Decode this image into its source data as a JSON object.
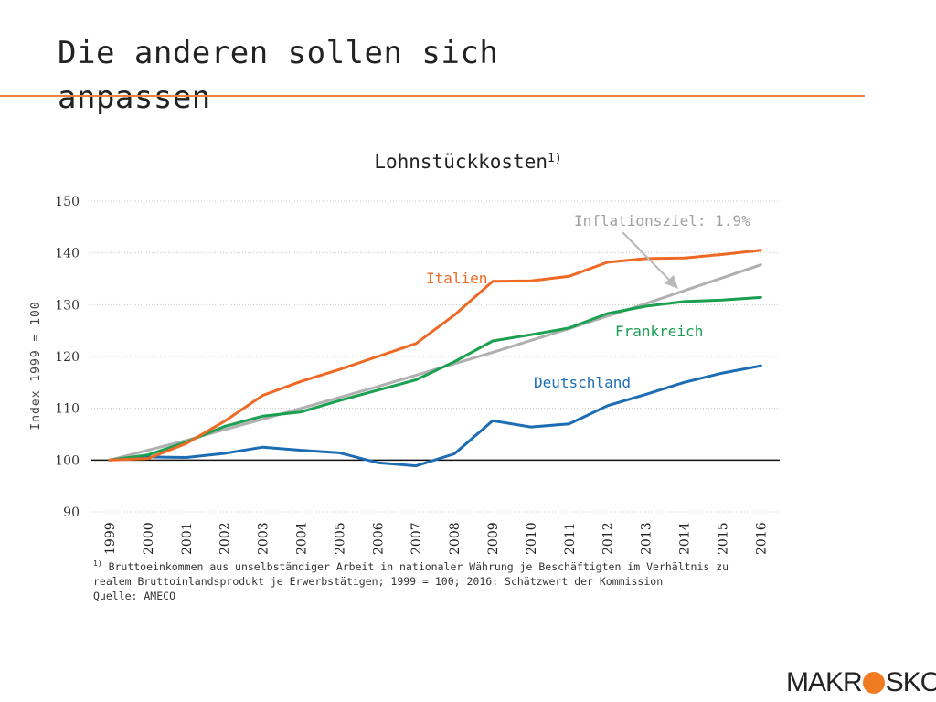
{
  "slide": {
    "title": "Die anderen sollen sich anpassen",
    "footnote_marker": "1)",
    "footnote_line1": " Bruttoeinkommen aus unselbständiger Arbeit in nationaler Währung je Beschäftigten im Verhältnis zu",
    "footnote_line2": "realem Bruttoinlandsprodukt je Erwerbstätigen; 1999 = 100; 2016: Schätzwert der Kommission",
    "footnote_line3": "Quelle: AMECO",
    "logo_left": "MAKR",
    "logo_right": "SKOP",
    "accent_color": "#e8843c"
  },
  "chart_data": {
    "type": "line",
    "title": "Lohnstückkosten",
    "title_sup": "1)",
    "ylabel": "Index 1999 = 100",
    "xlabel": "",
    "ylim": [
      90,
      150
    ],
    "yticks": [
      90,
      100,
      110,
      120,
      130,
      140,
      150
    ],
    "baseline": 100,
    "grid": "horizontal dotted",
    "categories": [
      "1999",
      "2000",
      "2001",
      "2002",
      "2003",
      "2004",
      "2005",
      "2006",
      "2007",
      "2008",
      "2009",
      "2010",
      "2011",
      "2012",
      "2013",
      "2014",
      "2015",
      "2016"
    ],
    "series": [
      {
        "name": "Italien",
        "color": "#ee6a24",
        "values": [
          100,
          100.3,
          103.2,
          107.5,
          112.5,
          115.2,
          117.5,
          120.0,
          122.5,
          128.0,
          134.5,
          134.6,
          135.5,
          138.2,
          138.9,
          139.0,
          139.7,
          140.5
        ]
      },
      {
        "name": "Frankreich",
        "color": "#1aa050",
        "values": [
          100,
          101.0,
          103.5,
          106.5,
          108.5,
          109.3,
          111.5,
          113.5,
          115.5,
          119.0,
          123.0,
          124.2,
          125.5,
          128.3,
          129.7,
          130.6,
          130.9,
          131.4
        ]
      },
      {
        "name": "Deutschland",
        "color": "#1c6db3",
        "values": [
          100,
          100.6,
          100.5,
          101.3,
          102.5,
          101.9,
          101.4,
          99.5,
          98.9,
          101.2,
          107.6,
          106.4,
          107.0,
          110.5,
          112.7,
          115.0,
          116.8,
          118.2
        ]
      },
      {
        "name": "Inflationsziel: 1.9%",
        "color": "#b0b0b0",
        "values": [
          100,
          101.9,
          103.8,
          105.9,
          107.9,
          110.0,
          112.1,
          114.2,
          116.4,
          118.6,
          120.8,
          123.1,
          125.4,
          127.8,
          130.2,
          132.7,
          135.2,
          137.7
        ]
      }
    ],
    "labels": {
      "italien": "Italien",
      "frankreich": "Frankreich",
      "deutschland": "Deutschland",
      "inflation": "Inflationsziel: 1.9%"
    }
  }
}
